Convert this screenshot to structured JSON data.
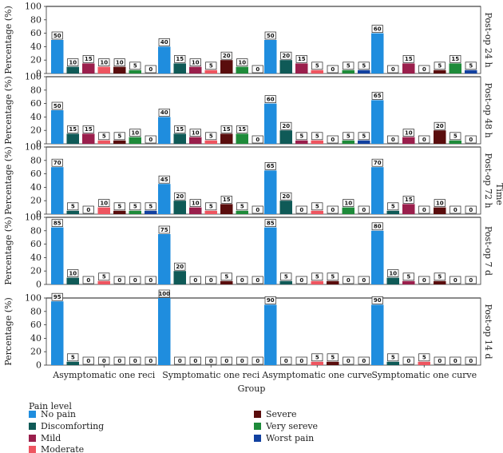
{
  "chart_data": {
    "type": "bar",
    "ylabel": "Percentage (%)",
    "xlabel": "Group",
    "facet_label": "Time",
    "ylim": [
      0,
      100
    ],
    "yticks": [
      0,
      20,
      40,
      60,
      80,
      100
    ],
    "categories": [
      "Asymptomatic one reci",
      "Symptomatic one reci",
      "Asymptomatic one curve",
      "Symptomatic one curve"
    ],
    "legend_title": "Pain level",
    "series": [
      {
        "name": "No pain",
        "color": "#1f8dde"
      },
      {
        "name": "Discomforting",
        "color": "#0f5a57"
      },
      {
        "name": "Mild",
        "color": "#9a1f4c"
      },
      {
        "name": "Moderate",
        "color": "#ee5560"
      },
      {
        "name": "Severe",
        "color": "#5a0d0d"
      },
      {
        "name": "Very sereve",
        "color": "#1e8b3a"
      },
      {
        "name": "Worst pain",
        "color": "#1241a0"
      }
    ],
    "panels": [
      {
        "label": "Post-op 24 h",
        "values": [
          [
            50,
            10,
            15,
            10,
            10,
            5,
            0
          ],
          [
            40,
            15,
            10,
            5,
            20,
            10,
            0
          ],
          [
            50,
            20,
            15,
            5,
            0,
            5,
            5
          ],
          [
            60,
            0,
            15,
            0,
            5,
            15,
            5
          ]
        ]
      },
      {
        "label": "Post-op 48 h",
        "values": [
          [
            50,
            15,
            15,
            5,
            5,
            10,
            0
          ],
          [
            40,
            15,
            10,
            5,
            15,
            15,
            0
          ],
          [
            60,
            20,
            5,
            5,
            0,
            5,
            5
          ],
          [
            65,
            0,
            10,
            0,
            20,
            5,
            0
          ]
        ]
      },
      {
        "label": "Post-op 72 h",
        "values": [
          [
            70,
            5,
            0,
            10,
            5,
            5,
            5
          ],
          [
            45,
            20,
            10,
            5,
            15,
            5,
            0
          ],
          [
            65,
            20,
            0,
            5,
            0,
            10,
            0
          ],
          [
            70,
            5,
            15,
            0,
            10,
            0,
            0
          ]
        ]
      },
      {
        "label": "Post-op 7 d",
        "values": [
          [
            85,
            10,
            0,
            5,
            0,
            0,
            0
          ],
          [
            75,
            20,
            0,
            0,
            5,
            0,
            0
          ],
          [
            85,
            5,
            0,
            5,
            5,
            0,
            0
          ],
          [
            80,
            10,
            5,
            0,
            5,
            0,
            0
          ]
        ]
      },
      {
        "label": "Post-op 14 d",
        "values": [
          [
            95,
            5,
            0,
            0,
            0,
            0,
            0
          ],
          [
            100,
            0,
            0,
            0,
            0,
            0,
            0
          ],
          [
            90,
            0,
            0,
            5,
            5,
            0,
            0
          ],
          [
            90,
            5,
            0,
            5,
            0,
            0,
            0
          ]
        ]
      }
    ]
  }
}
